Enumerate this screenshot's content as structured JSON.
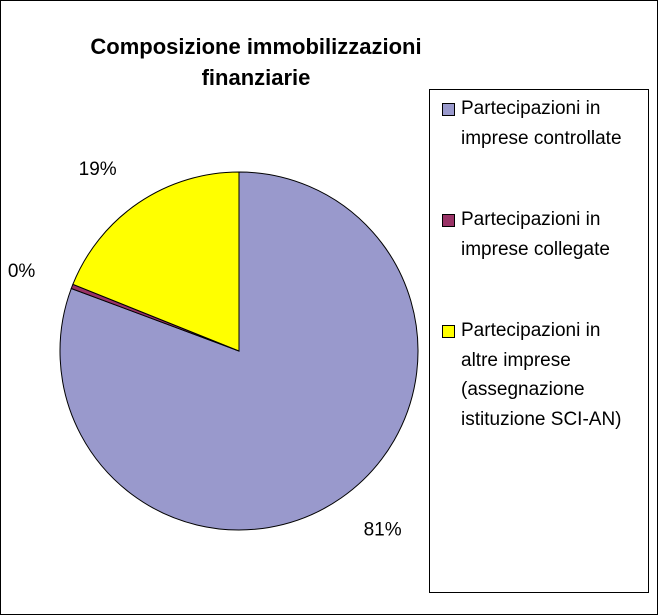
{
  "chart_data": {
    "type": "pie",
    "title": "Composizione immobilizzazioni finanziarie",
    "categories": [
      "Partecipazioni in imprese controllate",
      "Partecipazioni in imprese collegate",
      "Partecipazioni in altre imprese (assegnazione istituzione SCI-AN)"
    ],
    "values": [
      81,
      0.4,
      19
    ],
    "value_labels": [
      "81%",
      "0%",
      "19%"
    ],
    "colors": [
      "#9999cc",
      "#993366",
      "#ffff00"
    ]
  }
}
